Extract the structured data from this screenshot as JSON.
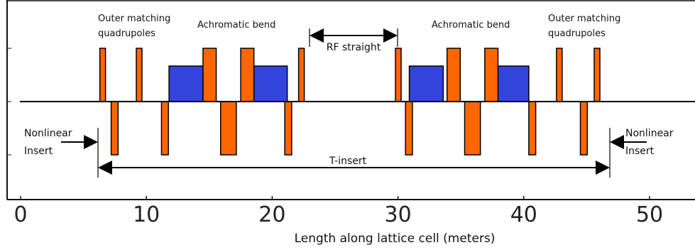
{
  "colors": {
    "quad": "#ff6600",
    "dipole": "#3344dd",
    "stroke": "#000000",
    "frame": "#111111"
  },
  "labels": {
    "outer_left": [
      "Outer matching",
      "quadrupoles"
    ],
    "outer_right": [
      "Outer matching",
      "quadrupoles"
    ],
    "bend_left": "Achromatic bend",
    "bend_right": "Achromatic bend",
    "rf": "RF straight",
    "nl_left": [
      "Nonlinear",
      "Insert"
    ],
    "nl_right": [
      "Nonlinear",
      "Insert"
    ],
    "tinsert": "T-insert"
  },
  "axis": {
    "ticks": [
      "0",
      "10",
      "20",
      "30",
      "40",
      "50"
    ],
    "tick_values": [
      0,
      10,
      20,
      30,
      40,
      50
    ],
    "range": [
      0,
      52
    ],
    "xlabel": "Length along lattice cell (meters)"
  },
  "magnets": {
    "quads": [
      {
        "s": 6.3,
        "len": 0.45,
        "dir": "focus"
      },
      {
        "s": 7.2,
        "len": 0.55,
        "dir": "defocus"
      },
      {
        "s": 9.2,
        "len": 0.45,
        "dir": "focus"
      },
      {
        "s": 11.2,
        "len": 0.55,
        "dir": "defocus"
      },
      {
        "s": 14.5,
        "len": 1.05,
        "dir": "focus"
      },
      {
        "s": 15.9,
        "len": 1.25,
        "dir": "defocus"
      },
      {
        "s": 17.5,
        "len": 1.05,
        "dir": "focus"
      },
      {
        "s": 21.0,
        "len": 0.55,
        "dir": "defocus"
      },
      {
        "s": 22.1,
        "len": 0.45,
        "dir": "focus"
      },
      {
        "s": 29.8,
        "len": 0.45,
        "dir": "focus"
      },
      {
        "s": 30.6,
        "len": 0.55,
        "dir": "defocus"
      },
      {
        "s": 33.9,
        "len": 1.05,
        "dir": "focus"
      },
      {
        "s": 35.3,
        "len": 1.25,
        "dir": "defocus"
      },
      {
        "s": 36.9,
        "len": 1.05,
        "dir": "focus"
      },
      {
        "s": 40.4,
        "len": 0.55,
        "dir": "defocus"
      },
      {
        "s": 42.6,
        "len": 0.45,
        "dir": "focus"
      },
      {
        "s": 44.5,
        "len": 0.55,
        "dir": "defocus"
      },
      {
        "s": 45.6,
        "len": 0.45,
        "dir": "focus"
      }
    ],
    "dipoles": [
      {
        "s": 11.8,
        "len": 2.7
      },
      {
        "s": 18.5,
        "len": 2.7
      },
      {
        "s": 30.9,
        "len": 2.7
      },
      {
        "s": 37.7,
        "len": 2.7
      }
    ]
  }
}
